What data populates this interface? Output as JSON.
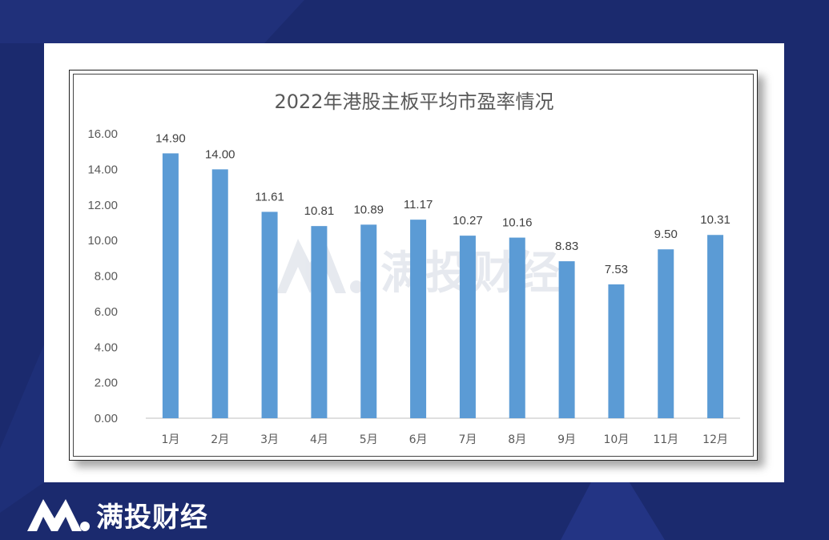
{
  "brand": {
    "name": "满投财经",
    "watermark": "满投财经",
    "colors": {
      "background": "#1b2a6e",
      "bar": "#5b9bd5",
      "panel": "#ffffff"
    }
  },
  "chart_data": {
    "type": "bar",
    "title": "2022年港股主板平均市盈率情况",
    "categories": [
      "1月",
      "2月",
      "3月",
      "4月",
      "5月",
      "6月",
      "7月",
      "8月",
      "9月",
      "10月",
      "11月",
      "12月"
    ],
    "values": [
      14.9,
      14.0,
      11.61,
      10.81,
      10.89,
      11.17,
      10.27,
      10.16,
      8.83,
      7.53,
      9.5,
      10.31
    ],
    "value_labels": [
      "14.90",
      "14.00",
      "11.61",
      "10.81",
      "10.89",
      "11.17",
      "10.27",
      "10.16",
      "8.83",
      "7.53",
      "9.50",
      "10.31"
    ],
    "ylim": [
      0,
      16
    ],
    "yticks": [
      "0.00",
      "2.00",
      "4.00",
      "6.00",
      "8.00",
      "10.00",
      "12.00",
      "14.00",
      "16.00"
    ],
    "xlabel": "",
    "ylabel": "",
    "grid": false,
    "legend": "none"
  }
}
